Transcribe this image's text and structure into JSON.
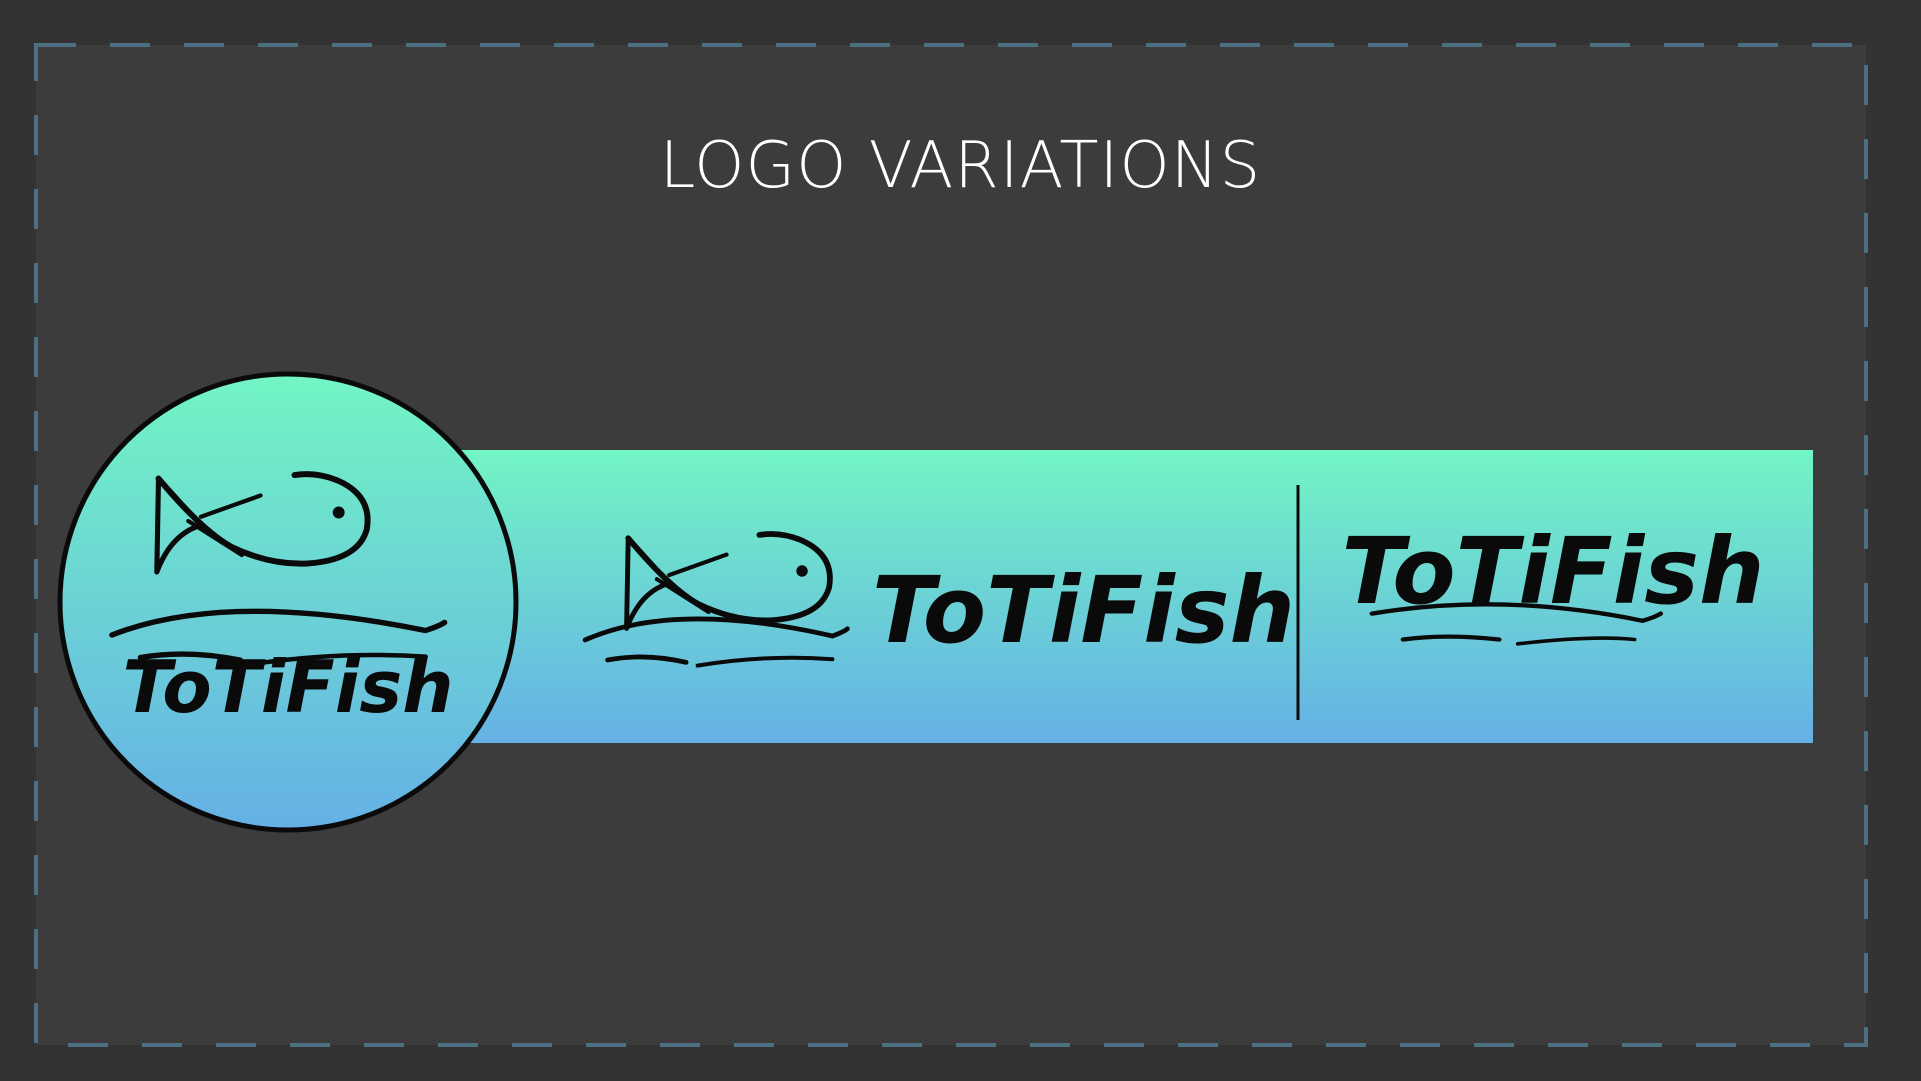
{
  "slide": {
    "title": "LOGO VARIATIONS"
  },
  "logos": {
    "circle_wordmark": "ToTiFish",
    "horizontal_wordmark": "ToTiFish",
    "text_only_wordmark": "ToTiFish"
  },
  "colors": {
    "background": "#333333",
    "slide_area": "#3c3c3c",
    "dashed_border": "#4d6f82",
    "gradient_top": "#72f5c4",
    "gradient_bottom": "#65b0e6",
    "ink": "#0a0a0a",
    "title_text": "#ffffff"
  },
  "icons": [
    "fish-icon",
    "wave-icon"
  ]
}
